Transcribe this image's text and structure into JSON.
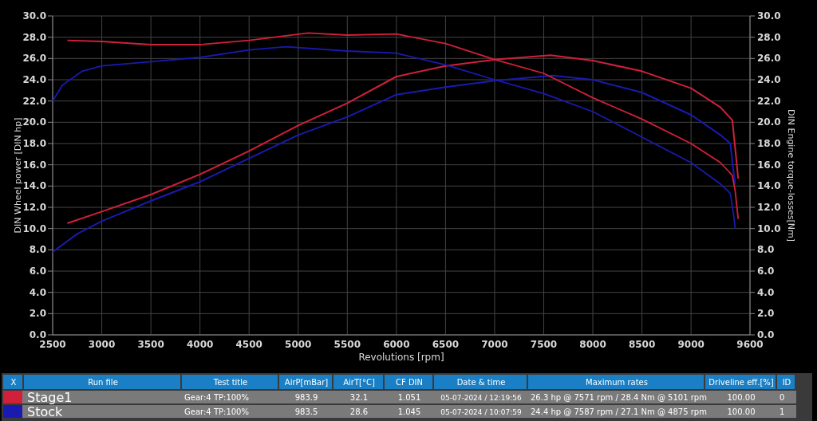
{
  "chart_data": {
    "type": "line",
    "xlabel": "Revolutions [rpm]",
    "ylabel": "DIN Wheel power [DIN hp]",
    "y2label": "DIN Engine torque-losses[Nm]",
    "xlim": [
      2500,
      9600
    ],
    "xticks": [
      2500,
      3000,
      3500,
      4000,
      4500,
      5000,
      5500,
      6000,
      6500,
      7000,
      7500,
      8000,
      8500,
      9000,
      9600
    ],
    "ylim": [
      0,
      30
    ],
    "yticks": [
      {
        "value": 0,
        "label": "0.0"
      },
      {
        "value": 2,
        "label": "2.0"
      },
      {
        "value": 4,
        "label": "4.0"
      },
      {
        "value": 6,
        "label": "6.0"
      },
      {
        "value": 8,
        "label": "8.0"
      },
      {
        "value": 10,
        "label": "10.0"
      },
      {
        "value": 12,
        "label": "12.0"
      },
      {
        "value": 14,
        "label": "14.0"
      },
      {
        "value": 16,
        "label": "16.0"
      },
      {
        "value": 18,
        "label": "18.0"
      },
      {
        "value": 20,
        "label": "20.0"
      },
      {
        "value": 22,
        "label": "22.0"
      },
      {
        "value": 24,
        "label": "24.0"
      },
      {
        "value": 26,
        "label": "26.0"
      },
      {
        "value": 28,
        "label": "28.0"
      },
      {
        "value": 30,
        "label": "30.0"
      }
    ],
    "y2lim": [
      0,
      30
    ],
    "y2ticks": [
      {
        "value": 0,
        "label": "0.0"
      },
      {
        "value": 2,
        "label": "2.0"
      },
      {
        "value": 4,
        "label": "4.0"
      },
      {
        "value": 6,
        "label": "6.0"
      },
      {
        "value": 8,
        "label": "8.0"
      },
      {
        "value": 10,
        "label": "10.0"
      },
      {
        "value": 12,
        "label": "12.0"
      },
      {
        "value": 14,
        "label": "14.0"
      },
      {
        "value": 16,
        "label": "16.0"
      },
      {
        "value": 18,
        "label": "18.0"
      },
      {
        "value": 20,
        "label": "20.0"
      },
      {
        "value": 22,
        "label": "22.0"
      },
      {
        "value": 24,
        "label": "24.0"
      },
      {
        "value": 26,
        "label": "26.0"
      },
      {
        "value": 28,
        "label": "28.0"
      },
      {
        "value": 30,
        "label": "30.0"
      }
    ],
    "grid": true,
    "legend": "bottom",
    "series": [
      {
        "name": "Stage1",
        "color": "#d0203a",
        "x": [
          2650,
          3000,
          3500,
          4000,
          4500,
          5000,
          5500,
          6000,
          6500,
          7000,
          7571,
          8000,
          8500,
          9000,
          9300,
          9420,
          9450,
          9480
        ],
        "values": [
          10.5,
          11.6,
          13.2,
          15.1,
          17.3,
          19.7,
          21.8,
          24.3,
          25.3,
          25.9,
          26.3,
          25.8,
          24.8,
          23.2,
          21.4,
          20.2,
          17.5,
          14.7
        ]
      },
      {
        "name": "Stock",
        "color": "#1a1ab0",
        "x": [
          2500,
          2750,
          3000,
          3500,
          4000,
          4500,
          5000,
          5500,
          6000,
          6500,
          7000,
          7587,
          8000,
          8500,
          9000,
          9300,
          9400,
          9430,
          9450
        ],
        "values": [
          7.8,
          9.5,
          10.7,
          12.6,
          14.4,
          16.6,
          18.8,
          20.5,
          22.6,
          23.3,
          23.9,
          24.4,
          24.0,
          22.8,
          20.7,
          18.8,
          18.0,
          15.5,
          14.2
        ]
      },
      {
        "color": "#d0203a",
        "axis": "y2",
        "x": [
          2650,
          3000,
          3500,
          4000,
          4500,
          5101,
          5500,
          6000,
          6500,
          7000,
          7500,
          8000,
          8500,
          9000,
          9300,
          9420,
          9450,
          9480
        ],
        "values": [
          27.7,
          27.6,
          27.3,
          27.3,
          27.7,
          28.4,
          28.2,
          28.3,
          27.4,
          25.9,
          24.6,
          22.3,
          20.3,
          18.0,
          16.2,
          15.0,
          13.5,
          10.9
        ]
      },
      {
        "color": "#1a1ab0",
        "axis": "y2",
        "x": [
          2500,
          2600,
          2800,
          3000,
          3500,
          4000,
          4500,
          4875,
          5500,
          6000,
          6500,
          7000,
          7500,
          8000,
          8500,
          9000,
          9300,
          9400,
          9430,
          9450
        ],
        "values": [
          22.0,
          23.5,
          24.8,
          25.3,
          25.7,
          26.1,
          26.8,
          27.1,
          26.7,
          26.5,
          25.4,
          24.0,
          22.7,
          21.0,
          18.6,
          16.2,
          14.2,
          13.3,
          11.5,
          10.0
        ]
      }
    ],
    "annotations": [
      "X",
      "Run file",
      "Test title",
      "AirP[mBar]",
      "AirT[°C]",
      "CF DIN",
      "Date & time",
      "Maximum rates",
      "Driveline eff.[%]",
      "ID",
      "Gear:4 TP:100%",
      "983.9",
      "32.1",
      "1.051",
      "05-07-2024 / 12:19:56",
      "26.3 hp @ 7571 rpm / 28.4 Nm @ 5101 rpm",
      "100.00",
      "0",
      "Gear:4 TP:100%",
      "983.5",
      "28.6",
      "1.045",
      "05-07-2024 / 10:07:59",
      "24.4 hp @ 7587 rpm / 27.1 Nm @ 4875 rpm",
      "100.00",
      "1"
    ]
  }
}
